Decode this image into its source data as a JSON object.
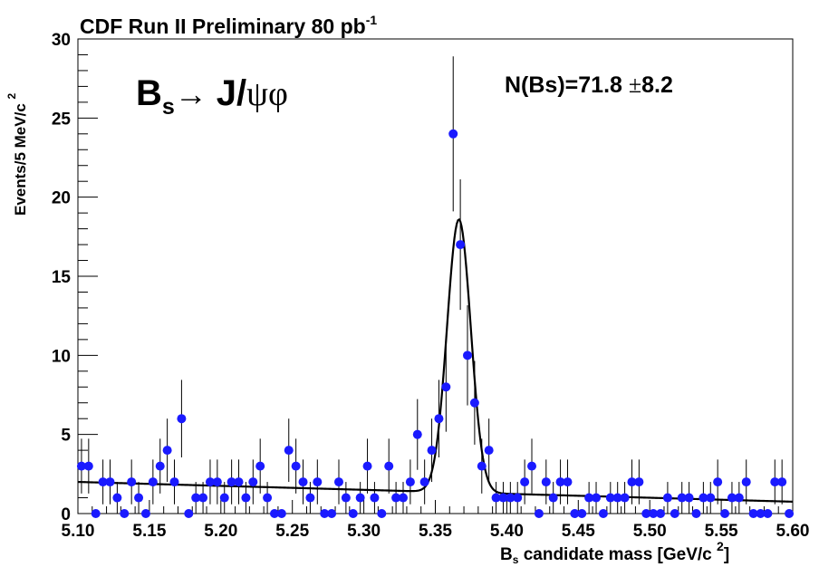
{
  "chart_data": {
    "type": "scatter",
    "title": "CDF Run II Preliminary 80 pb",
    "title_sup": "-1",
    "decay_label": {
      "particle": "B",
      "particle_sub": "s",
      "arrow": "→",
      "jpsi": "J/",
      "psi_phi": "ψφ"
    },
    "annotation": {
      "text": "N(Bs)=71.8 ",
      "pm": "±",
      "err": "8.2"
    },
    "xlabel": {
      "main": "B",
      "sub": "s",
      "rest": " candidate mass [GeV/c ",
      "sup": "2",
      "end": "]"
    },
    "ylabel": {
      "main": "Events/5 MeV/c ",
      "sup": "2"
    },
    "xlim": [
      5.1,
      5.6
    ],
    "ylim": [
      0,
      30
    ],
    "x_ticks": [
      "5.10",
      "5.15",
      "5.20",
      "5.25",
      "5.30",
      "5.35",
      "5.40",
      "5.45",
      "5.50",
      "5.55",
      "5.60"
    ],
    "y_ticks": [
      "0",
      "5",
      "10",
      "15",
      "20",
      "25",
      "30"
    ],
    "grid": false,
    "marker_color": "#1a1aff",
    "fit_color": "#000000",
    "bin_width": 0.005,
    "values": [
      3,
      3,
      0,
      2,
      2,
      1,
      0,
      2,
      1,
      0,
      2,
      3,
      4,
      2,
      6,
      0,
      1,
      1,
      2,
      2,
      1,
      2,
      2,
      1,
      2,
      3,
      1,
      0,
      0,
      4,
      3,
      2,
      1,
      2,
      0,
      0,
      2,
      1,
      0,
      1,
      3,
      1,
      0,
      3,
      1,
      1,
      2,
      5,
      2,
      4,
      6,
      8,
      24,
      17,
      10,
      7,
      3,
      4,
      1,
      1,
      1,
      1,
      2,
      3,
      0,
      2,
      1,
      2,
      2,
      0,
      0,
      1,
      1,
      0,
      1,
      1,
      1,
      2,
      2,
      0,
      0,
      0,
      1,
      0,
      1,
      1,
      0,
      1,
      1,
      2,
      0,
      1,
      1,
      2,
      0,
      0,
      0,
      2,
      2,
      0,
      0
    ],
    "fit": {
      "signal_yield": 71.8,
      "signal_error": 8.2,
      "mean": 5.3665,
      "sigma": 0.0083,
      "background_at_5_10": 2.0,
      "background_at_5_60": 0.75
    }
  }
}
